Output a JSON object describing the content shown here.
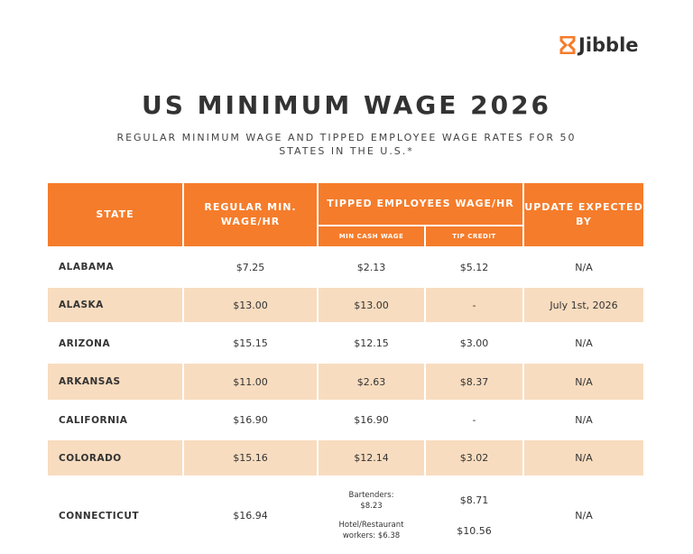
{
  "header": {
    "logo": "Jibble",
    "title": "US MINIMUM WAGE 2026",
    "subtitle": "REGULAR MINIMUM WAGE AND TIPPED EMPLOYEE WAGE RATES FOR 50 STATES IN THE U.S.*"
  },
  "table": {
    "columns": {
      "state": "STATE",
      "regular": "REGULAR MIN. WAGE/HR",
      "tipped": "TIPPED EMPLOYEES WAGE/HR",
      "min_cash": "MIN CASH WAGE",
      "tip_credit": "TIP CREDIT",
      "update": "UPDATE EXPECTED BY"
    },
    "rows": [
      {
        "state": "ALABAMA",
        "regular": "$7.25",
        "min_cash": "$2.13",
        "tip_credit": "$5.12",
        "update": "N/A"
      },
      {
        "state": "ALASKA",
        "regular": "$13.00",
        "min_cash": "$13.00",
        "tip_credit": "-",
        "update": "July 1st, 2026"
      },
      {
        "state": "ARIZONA",
        "regular": "$15.15",
        "min_cash": "$12.15",
        "tip_credit": "$3.00",
        "update": "N/A"
      },
      {
        "state": "ARKANSAS",
        "regular": "$11.00",
        "min_cash": "$2.63",
        "tip_credit": "$8.37",
        "update": "N/A"
      },
      {
        "state": "CALIFORNIA",
        "regular": "$16.90",
        "min_cash": "$16.90",
        "tip_credit": "-",
        "update": "N/A"
      },
      {
        "state": "COLORADO",
        "regular": "$15.16",
        "min_cash": "$12.14",
        "tip_credit": "$3.02",
        "update": "N/A"
      },
      {
        "state": "CONNECTICUT",
        "regular": "$16.94",
        "min_cash": [
          "Bartenders: $8.23",
          "Hotel/Restaurant workers: $6.38"
        ],
        "tip_credit": [
          "$8.71",
          "$10.56"
        ],
        "update": "N/A"
      }
    ]
  }
}
